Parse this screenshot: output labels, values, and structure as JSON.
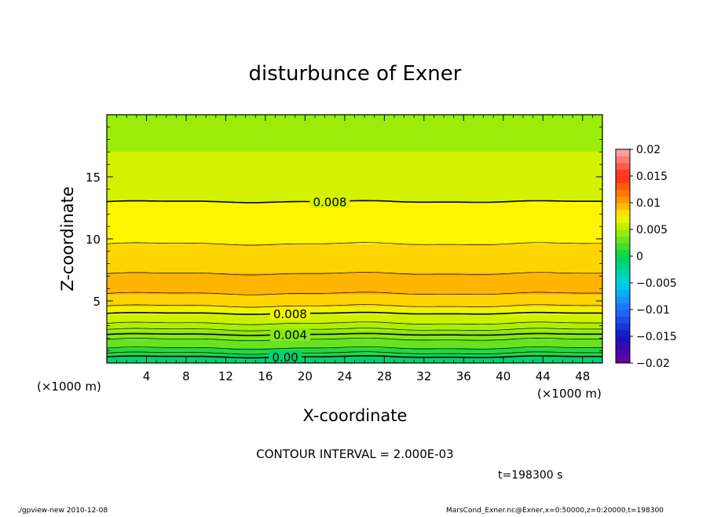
{
  "chart_data": {
    "type": "heatmap",
    "title": "disturbunce of Exner",
    "xlabel": "X-coordinate",
    "ylabel": "Z-coordinate",
    "x_unit_left": "(×1000 m)",
    "x_unit_right": "(×1000 m)",
    "xlim": [
      0,
      50
    ],
    "ylim": [
      0,
      20
    ],
    "xticks": [
      4,
      8,
      12,
      16,
      20,
      24,
      28,
      32,
      36,
      40,
      44,
      48
    ],
    "xtick_labels": [
      "4",
      "8",
      "12",
      "16",
      "20",
      "24",
      "28",
      "32",
      "36",
      "40",
      "44",
      "48"
    ],
    "yticks": [
      5,
      10,
      15
    ],
    "ytick_labels": [
      "5",
      "10",
      "15"
    ],
    "bands": [
      {
        "z0": 0.0,
        "z1": 0.6,
        "value": -0.001
      },
      {
        "z0": 0.6,
        "z1": 1.2,
        "value": 0.001
      },
      {
        "z0": 1.2,
        "z1": 1.9,
        "value": 0.003
      },
      {
        "z0": 1.9,
        "z1": 2.6,
        "value": 0.004
      },
      {
        "z0": 2.6,
        "z1": 3.2,
        "value": 0.005
      },
      {
        "z0": 3.2,
        "z1": 3.9,
        "value": 0.006
      },
      {
        "z0": 3.9,
        "z1": 4.5,
        "value": 0.007
      },
      {
        "z0": 4.5,
        "z1": 5.5,
        "value": 0.0085
      },
      {
        "z0": 5.5,
        "z1": 7.3,
        "value": 0.0095
      },
      {
        "z0": 7.3,
        "z1": 9.6,
        "value": 0.0085
      },
      {
        "z0": 9.6,
        "z1": 13.0,
        "value": 0.0075
      },
      {
        "z0": 13.0,
        "z1": 17.0,
        "value": 0.0062
      },
      {
        "z0": 17.0,
        "z1": 20.0,
        "value": 0.0045
      }
    ],
    "contours": [
      {
        "z": 13.0,
        "label": "0.008",
        "label_x": 22.5
      },
      {
        "z": 4.0,
        "label": "0.008",
        "label_x": 18.5
      },
      {
        "z": 2.3,
        "label": "0.004",
        "label_x": 18.5
      },
      {
        "z": 0.5,
        "label": "0.00",
        "label_x": 18.0
      }
    ],
    "thin_contours": [
      9.6,
      7.2,
      5.6,
      4.6,
      3.2,
      2.7,
      1.9,
      1.2,
      0.8
    ],
    "colorbar": {
      "min": -0.02,
      "max": 0.02,
      "tick_values": [
        0.02,
        0.015,
        0.01,
        0.005,
        0,
        -0.005,
        -0.01,
        -0.015,
        -0.02
      ],
      "tick_labels": [
        "0.02",
        "0.015",
        "0.01",
        "0.005",
        "0",
        "−0.005",
        "−0.01",
        "−0.015",
        "−0.02"
      ]
    }
  },
  "annotations": {
    "contour_interval": "CONTOUR INTERVAL = 2.000E-03",
    "time": "t=198300 s",
    "footer_left": "./gpview-new  2010-12-08",
    "footer_right": "MarsCond_Exner.nc@Exner,x=0:50000,z=0:20000,t=198300"
  }
}
